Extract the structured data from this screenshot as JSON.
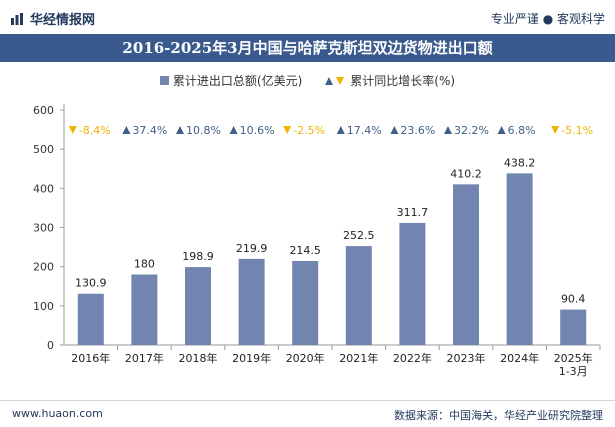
{
  "header": {
    "brand": "华经情报网",
    "tagline": "专业严谨 ● 客观科学",
    "title": "2016-2025年3月中国与哈萨克斯坦双边货物进出口额"
  },
  "legend": {
    "bar_label": "累计进出口总额(亿美元)",
    "marker_label": "累计同比增长率(%)"
  },
  "footer": {
    "url": "www.huaon.com",
    "source": "数据来源：中国海关，华经产业研究院整理"
  },
  "colors": {
    "bar": "#7185b0",
    "up": "#3f5f8a",
    "down": "#f0b400",
    "title_bg": "#3a5a8e"
  },
  "chart_data": {
    "type": "bar",
    "categories": [
      "2016年",
      "2017年",
      "2018年",
      "2019年",
      "2020年",
      "2021年",
      "2022年",
      "2023年",
      "2024年",
      "2025年\n1-3月"
    ],
    "series": [
      {
        "name": "累计进出口总额(亿美元)",
        "values": [
          130.9,
          180,
          198.9,
          219.9,
          214.5,
          252.5,
          311.7,
          410.2,
          438.2,
          90.4
        ]
      },
      {
        "name": "累计同比增长率(%)",
        "values": [
          -8.4,
          37.4,
          10.8,
          10.6,
          -2.5,
          17.4,
          23.6,
          32.2,
          6.8,
          -5.1
        ]
      }
    ],
    "value_labels": [
      "130.9",
      "180",
      "198.9",
      "219.9",
      "214.5",
      "252.5",
      "311.7",
      "410.2",
      "438.2",
      "90.4"
    ],
    "growth_labels": [
      "-8.4%",
      "37.4%",
      "10.8%",
      "10.6%",
      "-2.5%",
      "17.4%",
      "23.6%",
      "32.2%",
      "6.8%",
      "-5.1%"
    ],
    "yticks": [
      0,
      100,
      200,
      300,
      400,
      500,
      600
    ],
    "ylim": [
      0,
      600
    ]
  }
}
